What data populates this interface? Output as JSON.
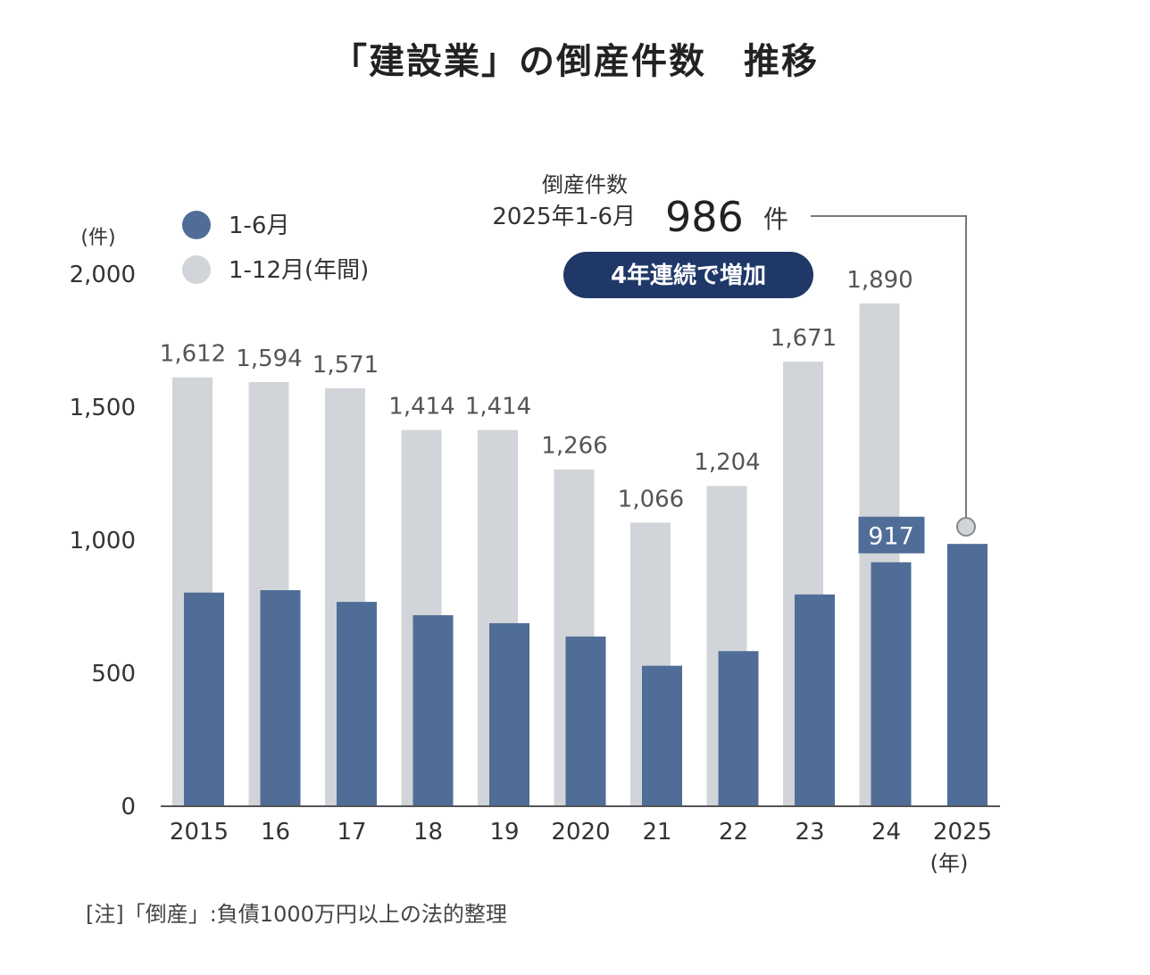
{
  "title": "「建設業」の倒産件数　推移",
  "note": "[注]「倒産」:負債1000万円以上の法的整理",
  "chart_data": {
    "type": "bar",
    "y_unit": "(件)",
    "x_unit": "(年)",
    "ylim": [
      0,
      2000
    ],
    "y_ticks": [
      0,
      500,
      1000,
      1500,
      2000
    ],
    "y_tick_labels": [
      "0",
      "500",
      "1,000",
      "1,500",
      "2,000"
    ],
    "categories": [
      "2015",
      "16",
      "17",
      "18",
      "19",
      "2020",
      "21",
      "22",
      "23",
      "24",
      "2025"
    ],
    "series": [
      {
        "name": "1-12月(年間)",
        "color": "#d1d5d9",
        "values": [
          1612,
          1594,
          1571,
          1414,
          1414,
          1266,
          1066,
          1204,
          1671,
          1890,
          null
        ],
        "labels": [
          "1,612",
          "1,594",
          "1,571",
          "1,414",
          "1,414",
          "1,266",
          "1,066",
          "1,204",
          "1,671",
          "1,890",
          ""
        ]
      },
      {
        "name": "1-6月",
        "color": "#4f6d97",
        "values": [
          803,
          812,
          768,
          718,
          688,
          638,
          528,
          583,
          796,
          917,
          986
        ],
        "labels": [
          "",
          "",
          "",
          "",
          "",
          "",
          "",
          "",
          "",
          "917",
          ""
        ]
      }
    ],
    "legend_position": "top-left",
    "grid": false,
    "callout": {
      "heading": "倒産件数",
      "period": "2025年1-6月",
      "value": "986",
      "unit": "件",
      "badge": "4年連続で増加",
      "badge_color": "#1f3868"
    }
  }
}
